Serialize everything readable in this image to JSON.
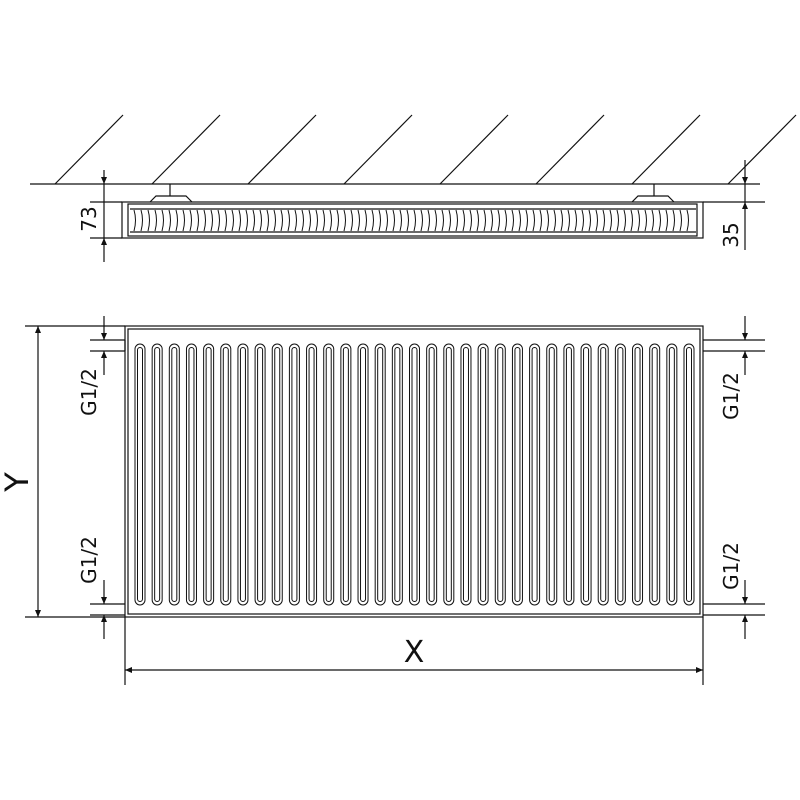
{
  "labels": {
    "depth": "73",
    "wall_gap": "35",
    "height": "Y",
    "width": "X",
    "connection_left_top": "G1/2",
    "connection_left_bottom": "G1/2",
    "connection_right_top": "G1/2",
    "connection_right_bottom": "G1/2"
  },
  "colors": {
    "line": "#111111",
    "background": "#ffffff"
  }
}
